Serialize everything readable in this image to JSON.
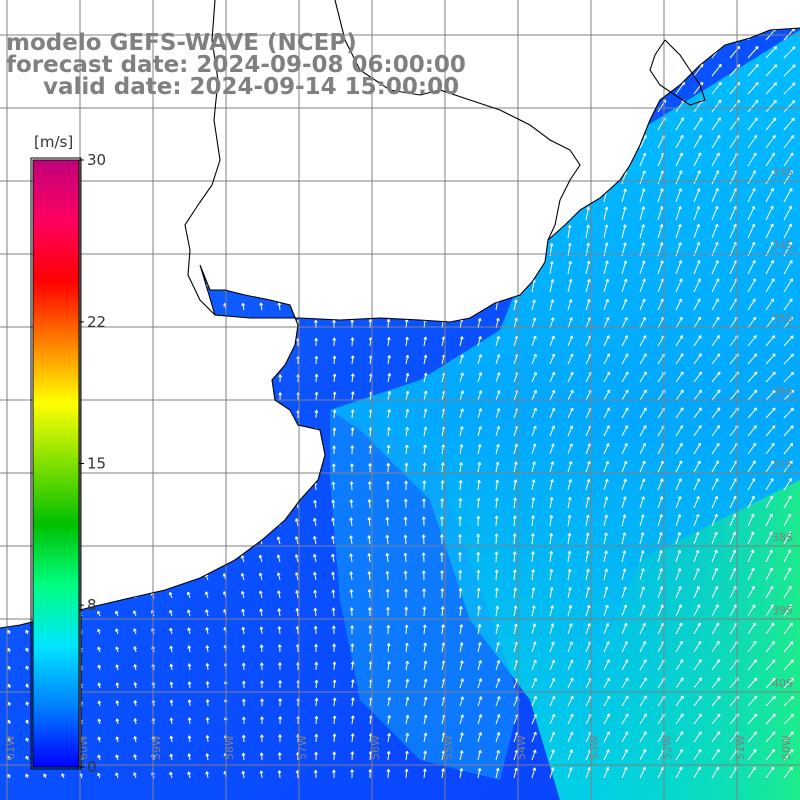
{
  "title": {
    "model": "modelo GEFS-WAVE (NCEP)",
    "forecast": "forecast date: 2024-09-08 06:00:00",
    "valid": "valid date: 2024-09-14 15:00:00"
  },
  "colorbar": {
    "unit": "[m/s]",
    "ticks": [
      {
        "label": "30",
        "value": 30
      },
      {
        "label": "22",
        "value": 22
      },
      {
        "label": "15",
        "value": 15
      },
      {
        "label": "8",
        "value": 8
      },
      {
        "label": "0",
        "value": 0
      }
    ],
    "colors": [
      "#0000ff",
      "#0080ff",
      "#00e5ff",
      "#00ff80",
      "#00c000",
      "#80e000",
      "#ffff00",
      "#ff8000",
      "#ff0000",
      "#ff0060",
      "#c0007a"
    ]
  },
  "grid": {
    "lon_labels": [
      "61W",
      "60W",
      "59W",
      "58W",
      "57W",
      "56W",
      "55W",
      "54W",
      "53W",
      "52W",
      "51W",
      "50W"
    ],
    "lat_labels": [
      "33S",
      "34S",
      "35S",
      "36S",
      "37S",
      "38S",
      "39S",
      "40S"
    ]
  },
  "colors": {
    "land": "#ffffff",
    "coast": "#000000",
    "grid": "#808080",
    "arrow": "#ffffff",
    "title": "#808080"
  }
}
